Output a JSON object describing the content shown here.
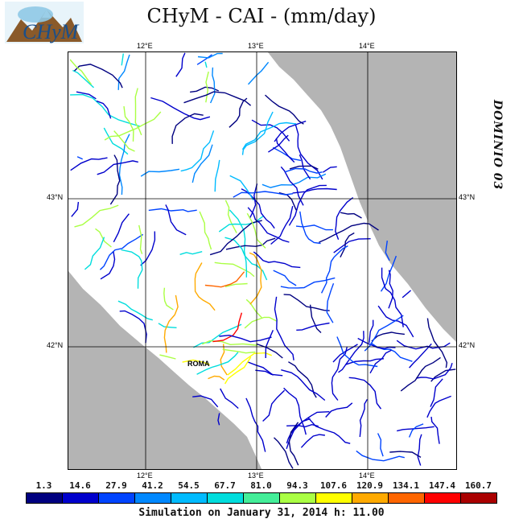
{
  "title": "CHyM - CAI - (mm/day)",
  "logo": {
    "text": "CHyM",
    "icon": "chym-logo-icon"
  },
  "domain_label": "DOMINIO 03",
  "axes": {
    "lon_ticks_top": [
      "12°E",
      "13°E",
      "14°E"
    ],
    "lon_ticks_bottom": [
      "12°E",
      "13°E",
      "14°E"
    ],
    "lat_ticks_left": [
      "43°N",
      "42°N"
    ],
    "lat_ticks_right": [
      "43°N",
      "42°N"
    ]
  },
  "city_label": "ROMA",
  "colorbar": {
    "labels": [
      "1.3",
      "14.6",
      "27.9",
      "41.2",
      "54.5",
      "67.7",
      "81.0",
      "94.3",
      "107.6",
      "120.9",
      "134.1",
      "147.4",
      "160.7"
    ],
    "colors": [
      "#000080",
      "#0000cc",
      "#0044ff",
      "#0088ff",
      "#00bbff",
      "#00dddd",
      "#44ee99",
      "#aaff44",
      "#ffff00",
      "#ffaa00",
      "#ff6600",
      "#ff0000",
      "#aa0000"
    ]
  },
  "footer": "Simulation on January 31, 2014 h: 11.00",
  "colors": {
    "sea": "#b4b4b4",
    "land": "#ffffff",
    "grid": "#000000"
  }
}
